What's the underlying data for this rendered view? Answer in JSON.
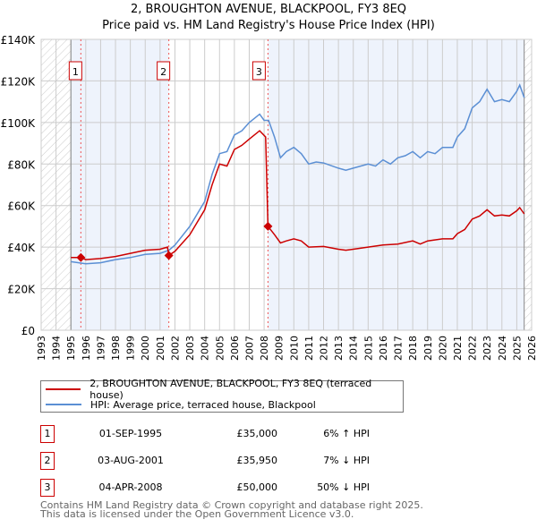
{
  "title": "2, BROUGHTON AVENUE, BLACKPOOL, FY3 8EQ",
  "subtitle": "Price paid vs. HM Land Registry's House Price Index (HPI)",
  "chart_data": {
    "type": "line",
    "title": "2, BROUGHTON AVENUE, BLACKPOOL, FY3 8EQ",
    "subtitle": "Price paid vs. HM Land Registry's House Price Index (HPI)",
    "xlim": [
      1993,
      2026
    ],
    "ylim": [
      0,
      140000
    ],
    "x_ticks": [
      "1993",
      "1994",
      "1995",
      "1996",
      "1997",
      "1998",
      "1999",
      "2000",
      "2001",
      "2002",
      "2003",
      "2004",
      "2005",
      "2006",
      "2007",
      "2008",
      "2009",
      "2010",
      "2011",
      "2012",
      "2013",
      "2014",
      "2015",
      "2016",
      "2017",
      "2018",
      "2019",
      "2020",
      "2021",
      "2022",
      "2023",
      "2024",
      "2025",
      "2026"
    ],
    "y_ticks": [
      {
        "v": 0,
        "label": "£0"
      },
      {
        "v": 20000,
        "label": "£20K"
      },
      {
        "v": 40000,
        "label": "£40K"
      },
      {
        "v": 60000,
        "label": "£60K"
      },
      {
        "v": 80000,
        "label": "£80K"
      },
      {
        "v": 100000,
        "label": "£100K"
      },
      {
        "v": 120000,
        "label": "£120K"
      },
      {
        "v": 140000,
        "label": "£140K"
      }
    ],
    "grid": true,
    "colors": {
      "property": "#cc0000",
      "hpi": "#5b8fd4"
    },
    "series": [
      {
        "name": "2, BROUGHTON AVENUE, BLACKPOOL, FY3 8EQ (terraced house)",
        "points": [
          [
            1995,
            35
          ],
          [
            1995.67,
            35
          ],
          [
            1996,
            34
          ],
          [
            1997,
            34.5
          ],
          [
            1998,
            35.5
          ],
          [
            1999,
            37
          ],
          [
            2000,
            38.5
          ],
          [
            2001,
            39
          ],
          [
            2001.5,
            40
          ],
          [
            2001.59,
            35.95
          ],
          [
            2002,
            38
          ],
          [
            2003,
            46
          ],
          [
            2004,
            58
          ],
          [
            2004.5,
            70
          ],
          [
            2005,
            80
          ],
          [
            2005.5,
            79
          ],
          [
            2006,
            87
          ],
          [
            2006.5,
            89
          ],
          [
            2007,
            92
          ],
          [
            2007.7,
            96
          ],
          [
            2008.1,
            93
          ],
          [
            2008.26,
            50
          ],
          [
            2008.7,
            46
          ],
          [
            2009.1,
            42
          ],
          [
            2009.5,
            43
          ],
          [
            2010,
            44
          ],
          [
            2010.5,
            43
          ],
          [
            2011,
            40
          ],
          [
            2012,
            40.3
          ],
          [
            2013,
            39
          ],
          [
            2013.5,
            38.5
          ],
          [
            2014,
            39
          ],
          [
            2015,
            40
          ],
          [
            2016,
            41
          ],
          [
            2017,
            41.5
          ],
          [
            2018,
            43
          ],
          [
            2018.5,
            41.5
          ],
          [
            2019,
            43
          ],
          [
            2020,
            44
          ],
          [
            2020.7,
            44
          ],
          [
            2021,
            46.5
          ],
          [
            2021.5,
            48.5
          ],
          [
            2022,
            53.5
          ],
          [
            2022.5,
            55
          ],
          [
            2023,
            58
          ],
          [
            2023.5,
            55
          ],
          [
            2024,
            55.5
          ],
          [
            2024.5,
            55
          ],
          [
            2025,
            57.5
          ],
          [
            2025.2,
            59
          ],
          [
            2025.5,
            56
          ]
        ]
      },
      {
        "name": "HPI: Average price, terraced house, Blackpool",
        "points": [
          [
            1995,
            33
          ],
          [
            1996,
            32
          ],
          [
            1997,
            32.5
          ],
          [
            1998,
            34
          ],
          [
            1999,
            35
          ],
          [
            2000,
            36.5
          ],
          [
            2001,
            37
          ],
          [
            2001.6,
            38.5
          ],
          [
            2002,
            41
          ],
          [
            2003,
            50
          ],
          [
            2004,
            62
          ],
          [
            2004.5,
            75
          ],
          [
            2005,
            85
          ],
          [
            2005.5,
            86
          ],
          [
            2006,
            94
          ],
          [
            2006.5,
            96
          ],
          [
            2007,
            100
          ],
          [
            2007.7,
            104
          ],
          [
            2008,
            101
          ],
          [
            2008.3,
            101
          ],
          [
            2008.7,
            93
          ],
          [
            2009.1,
            83
          ],
          [
            2009.5,
            86
          ],
          [
            2010,
            88
          ],
          [
            2010.5,
            85
          ],
          [
            2011,
            80
          ],
          [
            2011.5,
            81
          ],
          [
            2012,
            80.5
          ],
          [
            2013,
            78
          ],
          [
            2013.5,
            77
          ],
          [
            2014,
            78
          ],
          [
            2015,
            80
          ],
          [
            2015.5,
            79
          ],
          [
            2016,
            82
          ],
          [
            2016.5,
            80
          ],
          [
            2017,
            83
          ],
          [
            2017.5,
            84
          ],
          [
            2018,
            86
          ],
          [
            2018.5,
            83
          ],
          [
            2019,
            86
          ],
          [
            2019.5,
            85
          ],
          [
            2020,
            88
          ],
          [
            2020.7,
            88
          ],
          [
            2021,
            93
          ],
          [
            2021.5,
            97
          ],
          [
            2022,
            107
          ],
          [
            2022.5,
            110
          ],
          [
            2023,
            116
          ],
          [
            2023.5,
            110
          ],
          [
            2024,
            111
          ],
          [
            2024.5,
            110
          ],
          [
            2025,
            115
          ],
          [
            2025.2,
            118
          ],
          [
            2025.5,
            112
          ]
        ]
      }
    ],
    "sales": [
      {
        "label": "1",
        "x": 1995.67,
        "y": 35000
      },
      {
        "label": "2",
        "x": 2001.59,
        "y": 35950
      },
      {
        "label": "3",
        "x": 2008.26,
        "y": 50000
      }
    ],
    "data_end": 2025.5
  },
  "legend": {
    "property": "2, BROUGHTON AVENUE, BLACKPOOL, FY3 8EQ (terraced house)",
    "hpi": "HPI: Average price, terraced house, Blackpool"
  },
  "transactions": [
    {
      "num": "1",
      "date": "01-SEP-1995",
      "price": "£35,000",
      "hpi": "6% ↑ HPI"
    },
    {
      "num": "2",
      "date": "03-AUG-2001",
      "price": "£35,950",
      "hpi": "7% ↓ HPI"
    },
    {
      "num": "3",
      "date": "04-APR-2008",
      "price": "£50,000",
      "hpi": "50% ↓ HPI"
    }
  ],
  "footer": {
    "line1": "Contains HM Land Registry data © Crown copyright and database right 2025.",
    "line2": "This data is licensed under the Open Government Licence v3.0."
  }
}
